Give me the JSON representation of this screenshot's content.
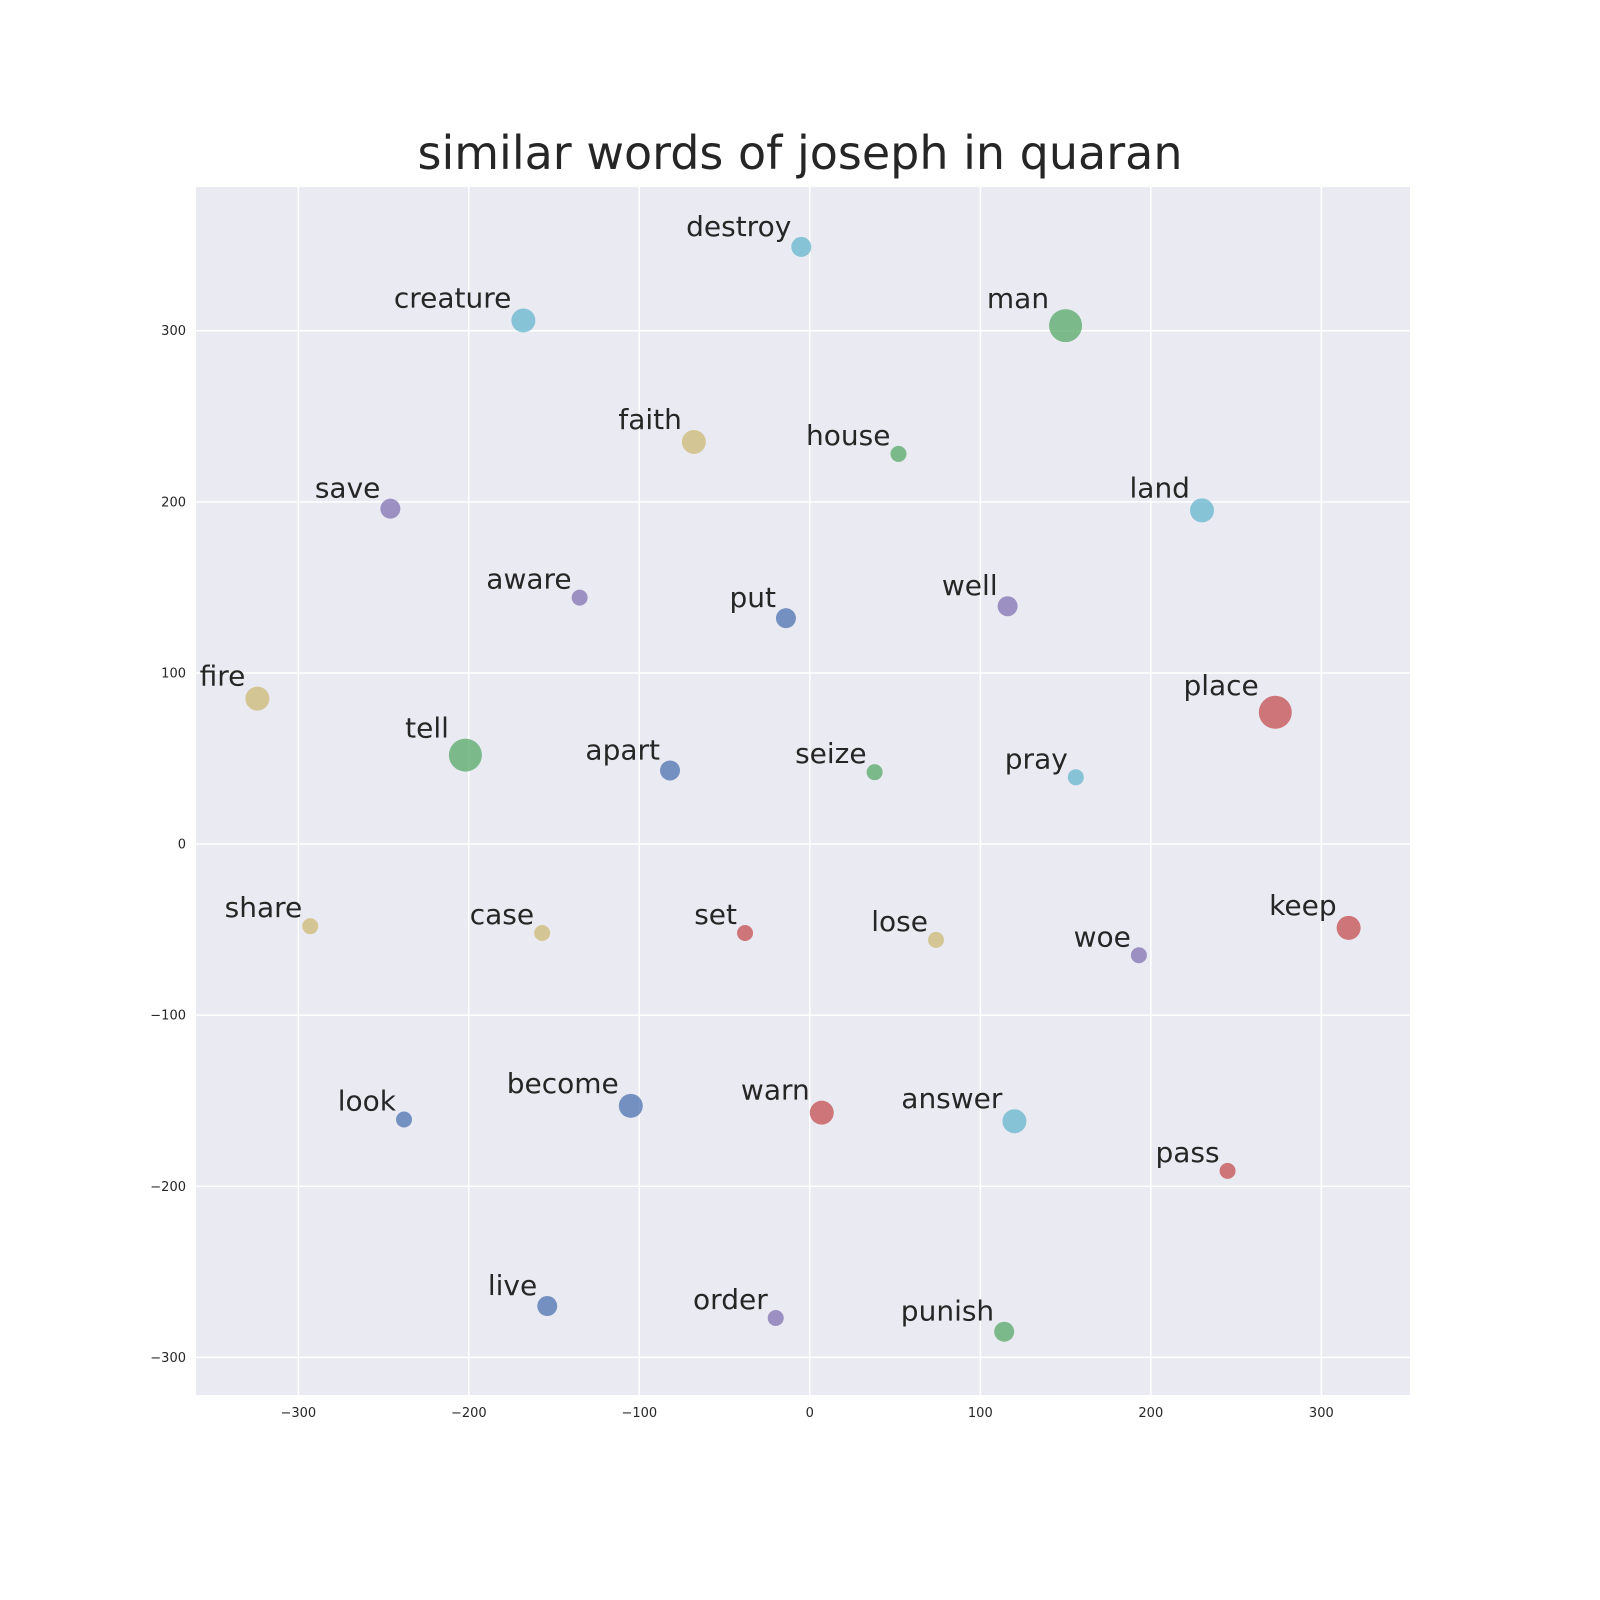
{
  "chart_data": {
    "type": "scatter",
    "title": "similar words of joseph in quaran",
    "xlabel": "",
    "ylabel": "",
    "xlim": [
      -360,
      352
    ],
    "ylim": [
      -322,
      384
    ],
    "xticks": [
      -300,
      -200,
      -100,
      0,
      100,
      200,
      300
    ],
    "yticks": [
      -300,
      -200,
      -100,
      0,
      100,
      200,
      300
    ],
    "xtick_labels": [
      "−300",
      "−200",
      "−100",
      "0",
      "100",
      "200",
      "300"
    ],
    "ytick_labels": [
      "−300",
      "−200",
      "−100",
      "0",
      "100",
      "200",
      "300"
    ],
    "grid": true,
    "background": "#eaeaf2",
    "colors": {
      "blue": "#4c72b0",
      "green": "#55a868",
      "red": "#c44e52",
      "purple": "#8172b2",
      "yellow": "#ccb974",
      "cyan": "#64b5cd"
    },
    "points": [
      {
        "label": "destroy",
        "x": -5,
        "y": 349,
        "size": 2,
        "color": "cyan"
      },
      {
        "label": "creature",
        "x": -168,
        "y": 306,
        "size": 3,
        "color": "cyan"
      },
      {
        "label": "man",
        "x": 150,
        "y": 303,
        "size": 5,
        "color": "green"
      },
      {
        "label": "faith",
        "x": -68,
        "y": 235,
        "size": 3,
        "color": "yellow"
      },
      {
        "label": "house",
        "x": 52,
        "y": 228,
        "size": 1,
        "color": "green"
      },
      {
        "label": "save",
        "x": -246,
        "y": 196,
        "size": 2,
        "color": "purple"
      },
      {
        "label": "land",
        "x": 230,
        "y": 195,
        "size": 3,
        "color": "cyan"
      },
      {
        "label": "aware",
        "x": -135,
        "y": 144,
        "size": 1,
        "color": "purple"
      },
      {
        "label": "put",
        "x": -14,
        "y": 132,
        "size": 2,
        "color": "blue"
      },
      {
        "label": "well",
        "x": 116,
        "y": 139,
        "size": 2,
        "color": "purple"
      },
      {
        "label": "fire",
        "x": -324,
        "y": 85,
        "size": 3,
        "color": "yellow"
      },
      {
        "label": "place",
        "x": 273,
        "y": 77,
        "size": 5,
        "color": "red"
      },
      {
        "label": "tell",
        "x": -202,
        "y": 52,
        "size": 5,
        "color": "green"
      },
      {
        "label": "apart",
        "x": -82,
        "y": 43,
        "size": 2,
        "color": "blue"
      },
      {
        "label": "seize",
        "x": 38,
        "y": 42,
        "size": 1,
        "color": "green"
      },
      {
        "label": "pray",
        "x": 156,
        "y": 39,
        "size": 1,
        "color": "cyan"
      },
      {
        "label": "share",
        "x": -293,
        "y": -48,
        "size": 1,
        "color": "yellow"
      },
      {
        "label": "case",
        "x": -157,
        "y": -52,
        "size": 1,
        "color": "yellow"
      },
      {
        "label": "set",
        "x": -38,
        "y": -52,
        "size": 1,
        "color": "red"
      },
      {
        "label": "lose",
        "x": 74,
        "y": -56,
        "size": 1,
        "color": "yellow"
      },
      {
        "label": "woe",
        "x": 193,
        "y": -65,
        "size": 1,
        "color": "purple"
      },
      {
        "label": "keep",
        "x": 316,
        "y": -49,
        "size": 3,
        "color": "red"
      },
      {
        "label": "look",
        "x": -238,
        "y": -161,
        "size": 1,
        "color": "blue"
      },
      {
        "label": "become",
        "x": -105,
        "y": -153,
        "size": 3,
        "color": "blue"
      },
      {
        "label": "warn",
        "x": 7,
        "y": -157,
        "size": 3,
        "color": "red"
      },
      {
        "label": "answer",
        "x": 120,
        "y": -162,
        "size": 3,
        "color": "cyan"
      },
      {
        "label": "pass",
        "x": 245,
        "y": -191,
        "size": 1,
        "color": "red"
      },
      {
        "label": "live",
        "x": -154,
        "y": -270,
        "size": 2,
        "color": "blue"
      },
      {
        "label": "order",
        "x": -20,
        "y": -277,
        "size": 1,
        "color": "purple"
      },
      {
        "label": "punish",
        "x": 114,
        "y": -285,
        "size": 2,
        "color": "green"
      }
    ]
  }
}
